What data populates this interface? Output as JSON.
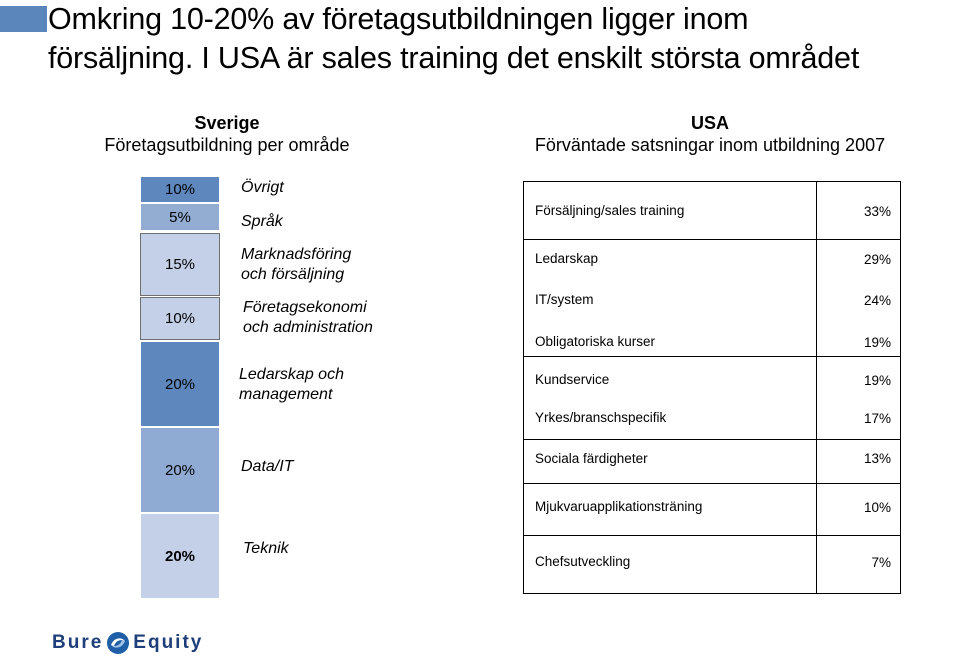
{
  "title": {
    "line1": "Omkring 10-20% av företagsutbildningen ligger inom",
    "line2": "försäljning. I USA är sales training det enskilt största området"
  },
  "sweden": {
    "heading": "Sverige",
    "subheading": "Företagsutbildning per område",
    "segments": [
      {
        "pct": "10%",
        "label": "Övrigt",
        "value": 10,
        "color": "#5d87bd"
      },
      {
        "pct": "5%",
        "label": "Språk",
        "value": 5,
        "color": "#92acd2"
      },
      {
        "pct": "15%",
        "label": "Marknadsföring och försäljning",
        "value": 15,
        "color": "#c3d0e8"
      },
      {
        "pct": "10%",
        "label": "Företagsekonomi och administration",
        "value": 10,
        "color": "#c3d0e8"
      },
      {
        "pct": "20%",
        "label": "Ledarskap och management",
        "value": 20,
        "color": "#5d87bd"
      },
      {
        "pct": "20%",
        "label": "Data/IT",
        "value": 20,
        "color": "#8fabd4"
      },
      {
        "pct": "20%",
        "label": "Teknik",
        "value": 20,
        "color": "#c3d0e8"
      }
    ]
  },
  "usa": {
    "heading": "USA",
    "subheading": "Förväntade satsningar inom utbildning 2007",
    "rows": [
      {
        "name": "Försäljning/sales training",
        "value": "33%"
      },
      {
        "name": "Ledarskap",
        "value": "29%"
      },
      {
        "name": "IT/system",
        "value": "24%"
      },
      {
        "name": "Obligatoriska kurser",
        "value": "19%"
      },
      {
        "name": "Kundservice",
        "value": "19%"
      },
      {
        "name": "Yrkes/branschspecifik",
        "value": "17%"
      },
      {
        "name": "Sociala färdigheter",
        "value": "13%"
      },
      {
        "name": "Mjukvaruapplikationsträning",
        "value": "10%"
      },
      {
        "name": "Chefsutveckling",
        "value": "7%"
      }
    ]
  },
  "logo": {
    "part1": "Bure",
    "part2": "Equity"
  }
}
